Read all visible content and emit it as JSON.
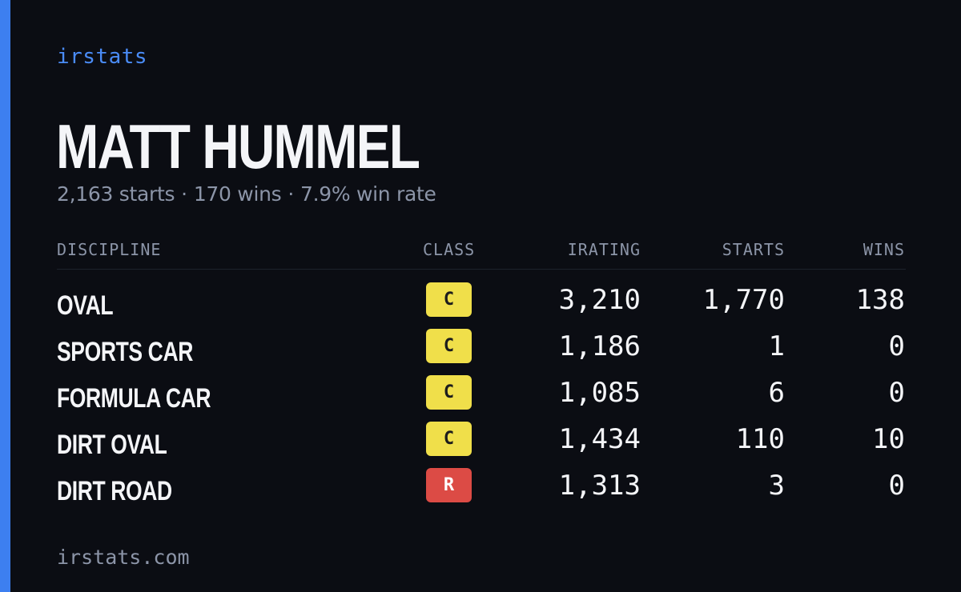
{
  "brand": "irstats",
  "driver": {
    "name": "MATT HUMMEL"
  },
  "summary": {
    "starts": "2,163 starts",
    "wins": "170 wins",
    "win_rate": "7.9% win rate",
    "separator": "·"
  },
  "table": {
    "headers": {
      "discipline": "DISCIPLINE",
      "class": "CLASS",
      "irating": "IRATING",
      "starts": "STARTS",
      "wins": "WINS"
    },
    "rows": [
      {
        "discipline": "OVAL",
        "class": "C",
        "irating": "3,210",
        "starts": "1,770",
        "wins": "138"
      },
      {
        "discipline": "SPORTS CAR",
        "class": "C",
        "irating": "1,186",
        "starts": "1",
        "wins": "0"
      },
      {
        "discipline": "FORMULA CAR",
        "class": "C",
        "irating": "1,085",
        "starts": "6",
        "wins": "0"
      },
      {
        "discipline": "DIRT OVAL",
        "class": "C",
        "irating": "1,434",
        "starts": "110",
        "wins": "10"
      },
      {
        "discipline": "DIRT ROAD",
        "class": "R",
        "irating": "1,313",
        "starts": "3",
        "wins": "0"
      }
    ]
  },
  "footer": "irstats.com",
  "colors": {
    "background": "#0b0d13",
    "accent": "#3d7ff0",
    "class_c": "#f0df4a",
    "class_r": "#dc4b45"
  }
}
